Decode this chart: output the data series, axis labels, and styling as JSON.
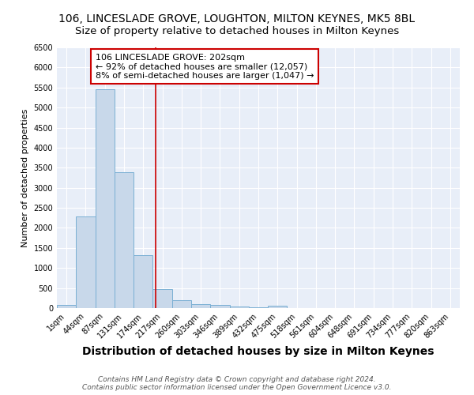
{
  "title": "106, LINCESLADE GROVE, LOUGHTON, MILTON KEYNES, MK5 8BL",
  "subtitle": "Size of property relative to detached houses in Milton Keynes",
  "xlabel": "Distribution of detached houses by size in Milton Keynes",
  "ylabel": "Number of detached properties",
  "footnote1": "Contains HM Land Registry data © Crown copyright and database right 2024.",
  "footnote2": "Contains public sector information licensed under the Open Government Licence v3.0.",
  "annotation_line1": "106 LINCESLADE GROVE: 202sqm",
  "annotation_line2": "← 92% of detached houses are smaller (12,057)",
  "annotation_line3": "8% of semi-detached houses are larger (1,047) →",
  "bins": [
    "1sqm",
    "44sqm",
    "87sqm",
    "131sqm",
    "174sqm",
    "217sqm",
    "260sqm",
    "303sqm",
    "346sqm",
    "389sqm",
    "432sqm",
    "475sqm",
    "518sqm",
    "561sqm",
    "604sqm",
    "648sqm",
    "691sqm",
    "734sqm",
    "777sqm",
    "820sqm",
    "863sqm"
  ],
  "values": [
    75,
    2280,
    5450,
    3380,
    1310,
    480,
    195,
    90,
    75,
    45,
    25,
    60,
    0,
    0,
    0,
    0,
    0,
    0,
    0,
    0,
    0
  ],
  "bar_color": "#c8d8ea",
  "bar_edge_color": "#7aafd4",
  "vline_color": "#cc0000",
  "ylim": [
    0,
    6500
  ],
  "yticks": [
    0,
    500,
    1000,
    1500,
    2000,
    2500,
    3000,
    3500,
    4000,
    4500,
    5000,
    5500,
    6000,
    6500
  ],
  "background_color": "#ffffff",
  "plot_bg_color": "#e8eef8",
  "title_fontsize": 10,
  "subtitle_fontsize": 9.5,
  "xlabel_fontsize": 10,
  "ylabel_fontsize": 8,
  "tick_fontsize": 7,
  "annotation_fontsize": 8,
  "footnote_fontsize": 6.5,
  "grid_color": "#ffffff"
}
